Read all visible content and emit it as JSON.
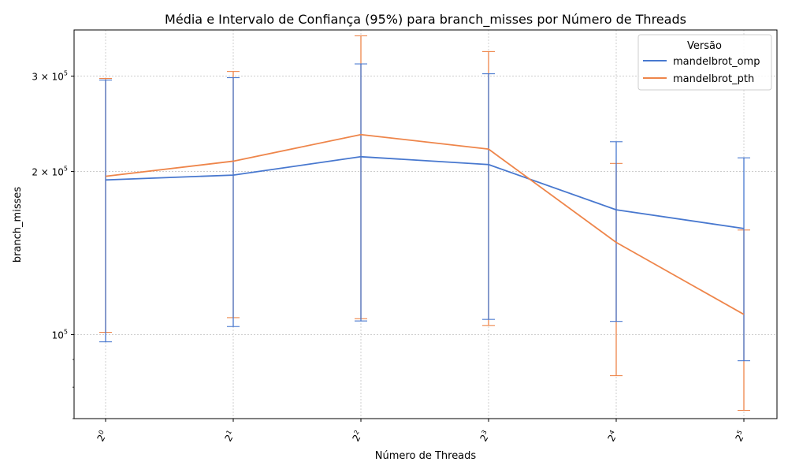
{
  "chart_data": {
    "type": "line",
    "title": "Média e Intervalo de Confiança (95%) para branch_misses por Número de Threads",
    "xlabel": "Número de Threads",
    "ylabel": "branch_misses",
    "x": [
      1,
      2,
      4,
      8,
      16,
      32
    ],
    "x_tick_labels": [
      {
        "base": "2",
        "exp": "0"
      },
      {
        "base": "2",
        "exp": "1"
      },
      {
        "base": "2",
        "exp": "2"
      },
      {
        "base": "2",
        "exp": "3"
      },
      {
        "base": "2",
        "exp": "4"
      },
      {
        "base": "2",
        "exp": "5"
      }
    ],
    "x_scale": "log2",
    "y_scale": "log10",
    "ylim": [
      70000,
      365000
    ],
    "y_tick_labels": [
      {
        "value": 100000,
        "mant": "10",
        "exp": "5"
      },
      {
        "value": 200000,
        "mant": "2 × 10",
        "exp": "5"
      },
      {
        "value": 300000,
        "mant": "3 × 10",
        "exp": "5"
      }
    ],
    "y_minor_ticks": [
      70000,
      80000,
      90000,
      100000,
      200000,
      300000
    ],
    "grid": true,
    "legend": {
      "title": "Versão",
      "position": "top-right"
    },
    "series": [
      {
        "name": "mandelbrot_omp",
        "color": "#4878cf",
        "values": [
          193000,
          197000,
          213000,
          206000,
          170000,
          157000
        ],
        "ci_low": [
          97000,
          103500,
          106000,
          106700,
          105800,
          89500
        ],
        "ci_high": [
          295000,
          298000,
          316000,
          303000,
          227000,
          212000
        ]
      },
      {
        "name": "mandelbrot_pth",
        "color": "#ee854a",
        "values": [
          196000,
          209000,
          234000,
          220000,
          148000,
          109000
        ],
        "ci_low": [
          101000,
          107500,
          107000,
          104000,
          84000,
          72500
        ],
        "ci_high": [
          297000,
          306000,
          356000,
          333000,
          207000,
          156000
        ]
      }
    ]
  }
}
